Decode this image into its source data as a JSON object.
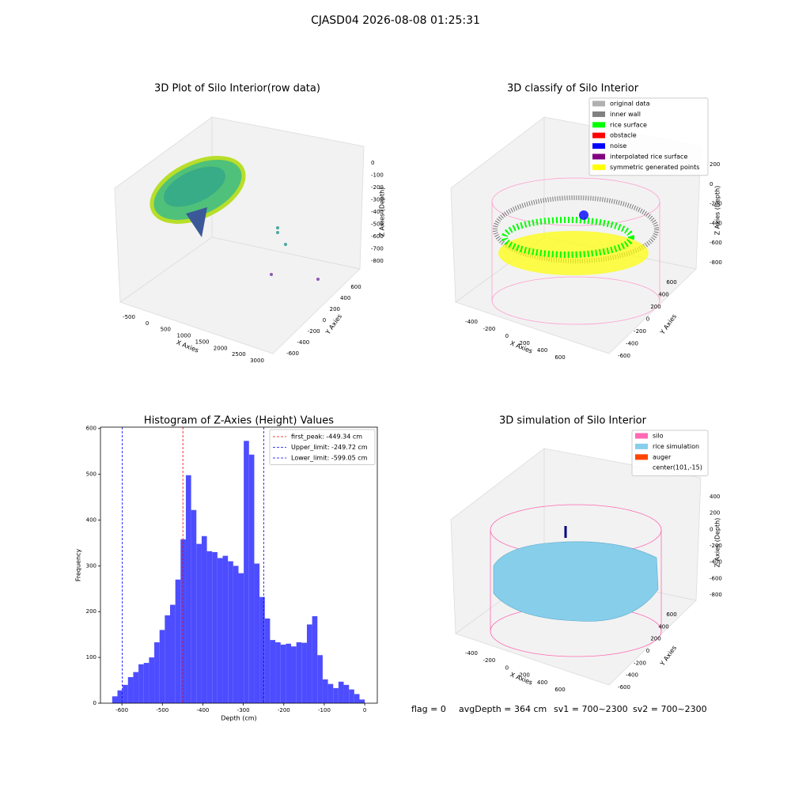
{
  "title": "CJASD04 2026-08-08 01:25:31",
  "footer": [
    "flag = 0",
    "avgDepth = 364 cm",
    "sv1 = 700~2300",
    "sv2 = 700~2300"
  ],
  "chart_data": [
    {
      "type": "scatter3d",
      "title": "3D Plot of Silo Interior(row data)",
      "xlabel": "X Axies",
      "ylabel": "Y Axies",
      "zlabel": "Z Axies (Depth)",
      "xlim": [
        -500,
        3000
      ],
      "ylim": [
        -600,
        600
      ],
      "zlim": [
        0,
        -800
      ],
      "xticks": [
        -500,
        0,
        500,
        1000,
        1500,
        2000,
        2500,
        3000
      ],
      "yticks": [
        -600,
        -400,
        -200,
        0,
        200,
        400,
        600
      ],
      "zticks": [
        0,
        -100,
        -200,
        -300,
        -400,
        -500,
        -600,
        -700,
        -800
      ]
    },
    {
      "type": "scatter3d",
      "title": "3D classify of Silo Interior",
      "xlabel": "X Axies",
      "ylabel": "Y Axies",
      "zlabel": "Z Axies (Depth)",
      "xlim": [
        -400,
        600
      ],
      "ylim": [
        -600,
        600
      ],
      "zlim": [
        200,
        -800
      ],
      "xticks": [
        -400,
        -200,
        0,
        200,
        400,
        600
      ],
      "yticks": [
        -600,
        -400,
        -200,
        0,
        200,
        400,
        600
      ],
      "zticks": [
        200,
        0,
        -200,
        -400,
        -600,
        -800
      ],
      "legend": "upper right",
      "series": [
        {
          "name": "original data",
          "color": "#b0b0b0"
        },
        {
          "name": "inner wall",
          "color": "#808080"
        },
        {
          "name": "rice surface",
          "color": "#00ff00"
        },
        {
          "name": "obstacle",
          "color": "#ff0000"
        },
        {
          "name": "noise",
          "color": "#0000ff"
        },
        {
          "name": "interpolated rice surface",
          "color": "#800080"
        },
        {
          "name": "symmetric generated points",
          "color": "#ffff00"
        }
      ]
    },
    {
      "type": "histogram",
      "title": "Histogram of Z-Axies (Height) Values",
      "xlabel": "Depth (cm)",
      "ylabel": "Frequency",
      "color": "#4d4dff",
      "bins": [
        -624,
        -611,
        -598,
        -585,
        -572,
        -559,
        -546,
        -533,
        -520,
        -507,
        -494,
        -481,
        -468,
        -455,
        -442,
        -429,
        -416,
        -403,
        -390,
        -377,
        -364,
        -351,
        -338,
        -325,
        -312,
        -299,
        -286,
        -273,
        -260,
        -247,
        -234,
        -221,
        -208,
        -195,
        -182,
        -169,
        -156,
        -143,
        -130,
        -117,
        -104,
        -91,
        -78,
        -65,
        -52,
        -39,
        -26,
        -13,
        0
      ],
      "values": [
        15,
        28,
        40,
        57,
        68,
        85,
        88,
        100,
        133,
        160,
        192,
        215,
        270,
        358,
        498,
        422,
        348,
        365,
        332,
        330,
        317,
        322,
        310,
        300,
        284,
        573,
        543,
        305,
        232,
        185,
        138,
        133,
        128,
        130,
        124,
        133,
        132,
        172,
        190,
        105,
        52,
        42,
        33,
        47,
        40,
        30,
        20,
        8
      ],
      "xlim": [
        -653,
        31
      ],
      "ylim": [
        0,
        603
      ],
      "xticks": [
        -600,
        -500,
        -400,
        -300,
        -200,
        -100,
        0
      ],
      "yticks": [
        0,
        100,
        200,
        300,
        400,
        500,
        600
      ],
      "legend": "upper right",
      "vlines": [
        {
          "name": "first_peak: -449.34 cm",
          "value": -449.34,
          "color": "#ff0000"
        },
        {
          "name": "Upper_limit: -249.72 cm",
          "value": -249.72,
          "color": "#0000ff"
        },
        {
          "name": "Lower_limit: -599.05 cm",
          "value": -599.05,
          "color": "#0000ff"
        }
      ]
    },
    {
      "type": "surface3d",
      "title": "3D simulation of Silo Interior",
      "xlabel": "X Axies",
      "ylabel": "Y Axies",
      "zlabel": "Z Axies (Depth)",
      "xlim": [
        -400,
        600
      ],
      "ylim": [
        -600,
        600
      ],
      "zlim": [
        400,
        -800
      ],
      "xticks": [
        -400,
        -200,
        0,
        200,
        400,
        600
      ],
      "yticks": [
        -600,
        -400,
        -200,
        0,
        200,
        400,
        600
      ],
      "zticks": [
        400,
        200,
        0,
        -200,
        -400,
        -600,
        -800
      ],
      "legend": "upper right",
      "series": [
        {
          "name": "silo",
          "color": "#ff69b4"
        },
        {
          "name": "rice simulation",
          "color": "#87ceeb"
        },
        {
          "name": "auger",
          "color": "#ff4500"
        },
        {
          "name": "center(101,-15)",
          "color": null
        }
      ]
    }
  ]
}
